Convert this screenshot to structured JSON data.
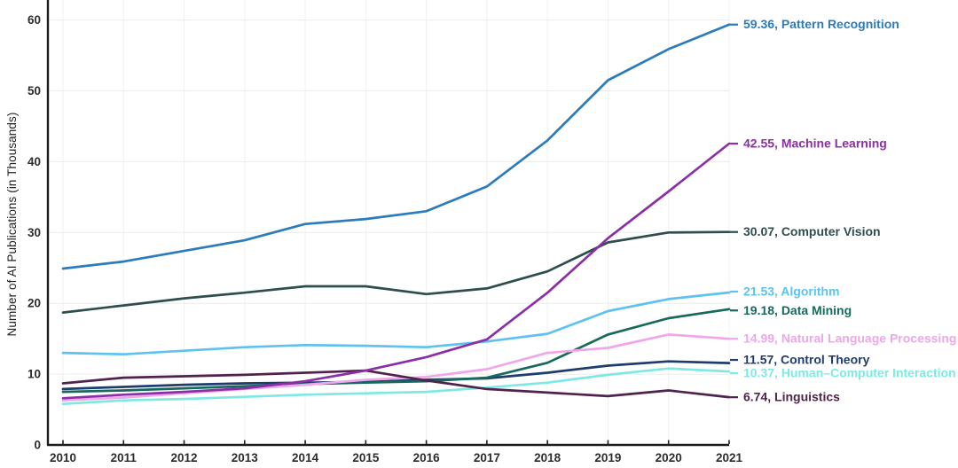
{
  "colors": {
    "background": "#ffffff",
    "axis": "#1c1c1c",
    "h_gridline": "#ebebeb",
    "v_gridline": "#f1f1f1",
    "tick_text": "#2d2d2d"
  },
  "chart_data": {
    "type": "line",
    "title": "",
    "xlabel": "",
    "ylabel": "Number of AI Publications (in Thousands)",
    "x_categories": [
      "2010",
      "2011",
      "2012",
      "2013",
      "2014",
      "2015",
      "2016",
      "2017",
      "2018",
      "2019",
      "2020",
      "2021"
    ],
    "y_ticks": [
      "0",
      "10",
      "20",
      "30",
      "40",
      "50",
      "60"
    ],
    "ylim": [
      0,
      66
    ],
    "grid": true,
    "legend_position": "end-of-line-labels-right",
    "series": [
      {
        "id": "pattern-recognition",
        "name": "Pattern Recognition",
        "end_label": "59.36, Pattern Recognition",
        "color": "#2b7bbd",
        "values": [
          24.9,
          25.9,
          27.4,
          28.9,
          31.2,
          31.9,
          33.0,
          36.5,
          43.0,
          51.5,
          55.9,
          59.36
        ]
      },
      {
        "id": "machine-learning",
        "name": "Machine Learning",
        "end_label": "42.55, Machine Learning",
        "color": "#8b2fa8",
        "values": [
          6.6,
          7.1,
          7.5,
          8.0,
          9.0,
          10.5,
          12.4,
          14.9,
          21.5,
          29.2,
          35.8,
          42.55
        ]
      },
      {
        "id": "computer-vision",
        "name": "Computer Vision",
        "end_label": "30.07, Computer Vision",
        "color": "#2e4e4e",
        "values": [
          18.7,
          19.7,
          20.7,
          21.5,
          22.4,
          22.4,
          21.3,
          22.1,
          24.5,
          28.6,
          30.0,
          30.07
        ]
      },
      {
        "id": "algorithm",
        "name": "Algorithm",
        "end_label": "21.53, Algorithm",
        "color": "#5ec2f0",
        "values": [
          13.0,
          12.8,
          13.3,
          13.8,
          14.1,
          14.0,
          13.8,
          14.6,
          15.7,
          18.9,
          20.6,
          21.53
        ]
      },
      {
        "id": "data-mining",
        "name": "Data Mining",
        "end_label": "19.18, Data Mining",
        "color": "#17695e",
        "values": [
          7.5,
          7.7,
          8.0,
          8.3,
          8.6,
          8.8,
          9.0,
          9.5,
          11.6,
          15.6,
          17.9,
          19.18
        ]
      },
      {
        "id": "natural-language-processing",
        "name": "Natural Language Processing",
        "end_label": "14.99, Natural Language Processing",
        "color": "#f0a6ea",
        "values": [
          6.3,
          6.7,
          7.3,
          7.9,
          8.5,
          9.2,
          9.6,
          10.7,
          13.0,
          13.7,
          15.6,
          14.99
        ]
      },
      {
        "id": "control-theory",
        "name": "Control Theory",
        "end_label": "11.57, Control Theory",
        "color": "#1e3c6e",
        "values": [
          7.9,
          8.2,
          8.5,
          8.7,
          8.8,
          8.9,
          9.2,
          9.4,
          10.2,
          11.2,
          11.8,
          11.57
        ]
      },
      {
        "id": "human-computer-interaction",
        "name": "Human–Computer Interaction",
        "end_label": "10.37, Human–Computer Interaction",
        "color": "#7ee9e4",
        "values": [
          5.8,
          6.3,
          6.5,
          6.8,
          7.1,
          7.3,
          7.5,
          8.1,
          8.8,
          9.9,
          10.8,
          10.37
        ]
      },
      {
        "id": "linguistics",
        "name": "Linguistics",
        "end_label": "6.74, Linguistics",
        "color": "#52224f",
        "values": [
          8.7,
          9.5,
          9.7,
          9.9,
          10.2,
          10.5,
          9.1,
          7.9,
          7.4,
          6.9,
          7.7,
          6.74
        ]
      }
    ]
  }
}
